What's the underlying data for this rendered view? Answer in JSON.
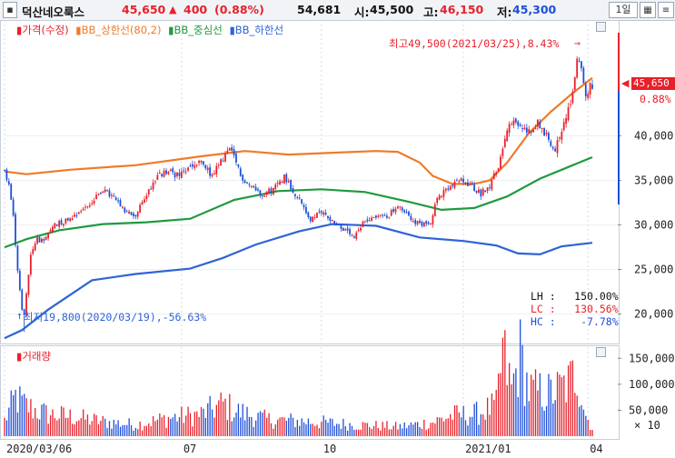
{
  "header": {
    "stock_name": "덕산네오룩스",
    "price": "45,650",
    "change_arrow": "▲",
    "change": "400",
    "change_pct": "(0.88%)",
    "volume": "54,681",
    "open_label": "시:",
    "open": "45,500",
    "high_label": "고:",
    "high": "46,150",
    "low_label": "저:",
    "low": "45,300",
    "period": "1일",
    "colors": {
      "up": "#e8202a",
      "down": "#1f4fd8",
      "text": "#111111"
    }
  },
  "legend": {
    "price": "가격(수정)",
    "upper": "BB_상한선(80,2)",
    "middle": "BB_중심선",
    "lower": "BB_하한선"
  },
  "annotations": {
    "high_note": "최고49,500(2021/03/25),8.43%",
    "low_note": "최저19,800(2020/03/19),-56.63%",
    "stats": [
      {
        "label": "LH",
        "value": "150.00%",
        "color": "#111111"
      },
      {
        "label": "LC",
        "value": "130.56%",
        "color": "#e8202a"
      },
      {
        "label": "HC",
        "value": "-7.78%",
        "color": "#1f4fd8"
      }
    ]
  },
  "current_price": {
    "value": "45,650",
    "pct": "0.88%"
  },
  "volume_panel": {
    "title": "거래량",
    "multiplier": "× 10"
  },
  "chart_data": [
    {
      "type": "line",
      "title": "",
      "y_axis_side": "right",
      "ylim": [
        16800,
        53000
      ],
      "yticks": [
        20000,
        25000,
        30000,
        35000,
        40000
      ],
      "ytick_labels": [
        "20,000",
        "25,000",
        "30,000",
        "35,000",
        "40,000"
      ],
      "x_tick_labels": [
        {
          "label": "2020/03/06",
          "index": 0
        },
        {
          "label": "07",
          "index": 81
        },
        {
          "label": "10",
          "index": 145
        },
        {
          "label": "2021/01",
          "index": 210
        },
        {
          "label": "04",
          "index": 267
        }
      ],
      "num_days": 270,
      "price_anchors": [
        [
          0,
          36000
        ],
        [
          2,
          34500
        ],
        [
          4,
          31000
        ],
        [
          6,
          25000
        ],
        [
          8,
          20500
        ],
        [
          9,
          19800
        ],
        [
          10,
          22500
        ],
        [
          12,
          26500
        ],
        [
          15,
          28500
        ],
        [
          18,
          28000
        ],
        [
          22,
          30000
        ],
        [
          28,
          30500
        ],
        [
          34,
          31500
        ],
        [
          40,
          32500
        ],
        [
          45,
          34000
        ],
        [
          50,
          33000
        ],
        [
          55,
          31500
        ],
        [
          60,
          31000
        ],
        [
          65,
          33500
        ],
        [
          70,
          35500
        ],
        [
          75,
          36000
        ],
        [
          80,
          35500
        ],
        [
          85,
          36500
        ],
        [
          90,
          37000
        ],
        [
          95,
          35500
        ],
        [
          100,
          37500
        ],
        [
          103,
          38500
        ],
        [
          106,
          37000
        ],
        [
          108,
          35500
        ],
        [
          112,
          34500
        ],
        [
          118,
          33500
        ],
        [
          123,
          34000
        ],
        [
          128,
          35500
        ],
        [
          133,
          33500
        ],
        [
          137,
          32000
        ],
        [
          140,
          30500
        ],
        [
          145,
          31500
        ],
        [
          150,
          30500
        ],
        [
          155,
          29500
        ],
        [
          160,
          28500
        ],
        [
          165,
          30500
        ],
        [
          170,
          31000
        ],
        [
          175,
          31000
        ],
        [
          180,
          32000
        ],
        [
          185,
          31000
        ],
        [
          190,
          30000
        ],
        [
          195,
          30500
        ],
        [
          198,
          33000
        ],
        [
          203,
          34000
        ],
        [
          208,
          35000
        ],
        [
          213,
          34500
        ],
        [
          218,
          33500
        ],
        [
          222,
          34500
        ],
        [
          226,
          36500
        ],
        [
          229,
          40000
        ],
        [
          232,
          41500
        ],
        [
          236,
          41000
        ],
        [
          240,
          40500
        ],
        [
          244,
          41500
        ],
        [
          248,
          40000
        ],
        [
          252,
          38500
        ],
        [
          256,
          41500
        ],
        [
          260,
          44500
        ],
        [
          262,
          49000
        ],
        [
          264,
          47500
        ],
        [
          266,
          44500
        ],
        [
          268,
          45500
        ],
        [
          269,
          45650
        ]
      ],
      "series": [
        {
          "name": "가격(수정)",
          "type": "candlestick",
          "up_color": "#e8202a",
          "down_color": "#1f4fd8"
        },
        {
          "name": "BB_상한선(80,2)",
          "color": "#f07a2a",
          "points": [
            [
              0,
              36000
            ],
            [
              10,
              35700
            ],
            [
              30,
              36200
            ],
            [
              60,
              36700
            ],
            [
              90,
              37700
            ],
            [
              110,
              38300
            ],
            [
              130,
              37900
            ],
            [
              150,
              38100
            ],
            [
              170,
              38300
            ],
            [
              180,
              38200
            ],
            [
              190,
              37000
            ],
            [
              196,
              35500
            ],
            [
              205,
              34600
            ],
            [
              215,
              34600
            ],
            [
              222,
              35000
            ],
            [
              230,
              37000
            ],
            [
              240,
              40300
            ],
            [
              250,
              42700
            ],
            [
              260,
              44800
            ],
            [
              269,
              46500
            ]
          ]
        },
        {
          "name": "BB_중심선",
          "color": "#1f9a3f",
          "points": [
            [
              0,
              27500
            ],
            [
              10,
              28400
            ],
            [
              25,
              29400
            ],
            [
              45,
              30100
            ],
            [
              65,
              30300
            ],
            [
              85,
              30700
            ],
            [
              105,
              32800
            ],
            [
              125,
              33800
            ],
            [
              145,
              34000
            ],
            [
              165,
              33700
            ],
            [
              185,
              32600
            ],
            [
              200,
              31700
            ],
            [
              215,
              31900
            ],
            [
              230,
              33200
            ],
            [
              245,
              35200
            ],
            [
              260,
              36700
            ],
            [
              269,
              37600
            ]
          ]
        },
        {
          "name": "BB_하한선",
          "color": "#2e63d6",
          "points": [
            [
              0,
              17300
            ],
            [
              8,
              18200
            ],
            [
              20,
              20500
            ],
            [
              40,
              23800
            ],
            [
              60,
              24500
            ],
            [
              85,
              25100
            ],
            [
              100,
              26300
            ],
            [
              115,
              27800
            ],
            [
              135,
              29300
            ],
            [
              150,
              30100
            ],
            [
              170,
              29900
            ],
            [
              190,
              28600
            ],
            [
              210,
              28200
            ],
            [
              225,
              27700
            ],
            [
              235,
              26800
            ],
            [
              245,
              26700
            ],
            [
              255,
              27600
            ],
            [
              269,
              28000
            ]
          ]
        }
      ]
    },
    {
      "type": "bar",
      "title": "거래량",
      "unit_multiplier": 10,
      "ylim": [
        0,
        175000
      ],
      "yticks": [
        50000,
        100000,
        150000
      ],
      "ytick_labels": [
        "50,000",
        "100,000",
        "150,000"
      ],
      "volume_anchors": [
        [
          0,
          30000
        ],
        [
          5,
          75000
        ],
        [
          9,
          60000
        ],
        [
          14,
          50000
        ],
        [
          20,
          42000
        ],
        [
          30,
          38000
        ],
        [
          45,
          28000
        ],
        [
          60,
          22000
        ],
        [
          75,
          35000
        ],
        [
          90,
          42000
        ],
        [
          100,
          62000
        ],
        [
          106,
          48000
        ],
        [
          120,
          32000
        ],
        [
          140,
          28000
        ],
        [
          160,
          22000
        ],
        [
          180,
          18000
        ],
        [
          195,
          26000
        ],
        [
          205,
          40000
        ],
        [
          215,
          42000
        ],
        [
          225,
          58000
        ],
        [
          228,
          160000
        ],
        [
          232,
          90000
        ],
        [
          236,
          155000
        ],
        [
          240,
          88000
        ],
        [
          250,
          82000
        ],
        [
          258,
          100000
        ],
        [
          262,
          126000
        ],
        [
          266,
          40000
        ],
        [
          269,
          15000
        ]
      ]
    }
  ]
}
